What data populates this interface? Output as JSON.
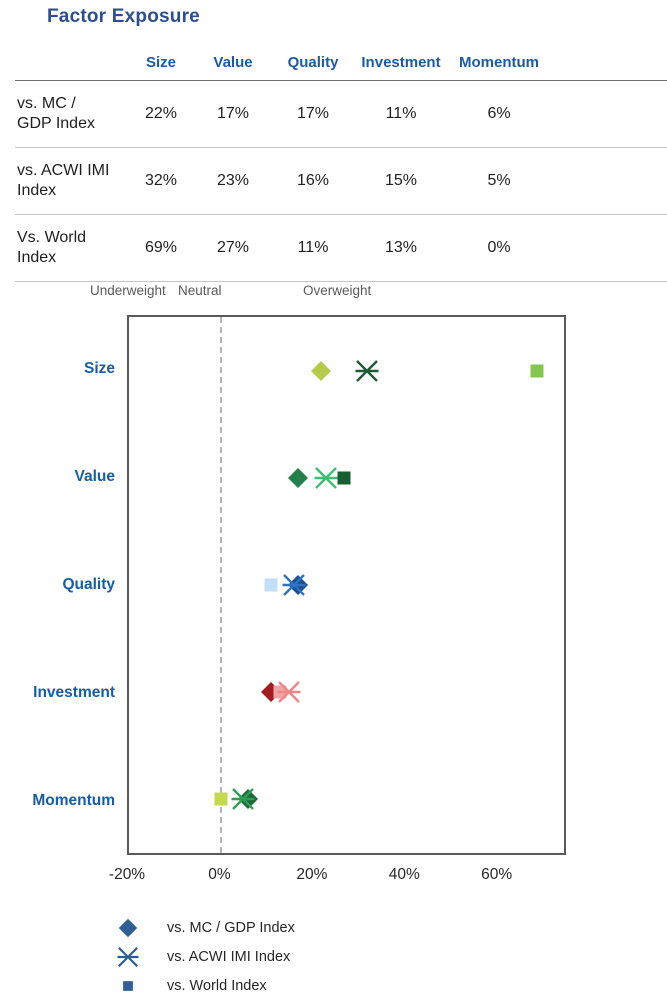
{
  "title": "Factor Exposure",
  "table": {
    "columns": [
      "Size",
      "Value",
      "Quality",
      "Investment",
      "Momentum"
    ],
    "rows": [
      {
        "label": "vs. MC / GDP Index",
        "values": [
          "22%",
          "17%",
          "17%",
          "11%",
          "6%"
        ]
      },
      {
        "label": "vs. ACWI IMI Index",
        "values": [
          "32%",
          "23%",
          "16%",
          "15%",
          "5%"
        ]
      },
      {
        "label": "Vs. World Index",
        "values": [
          "69%",
          "27%",
          "11%",
          "13%",
          "0%"
        ]
      }
    ]
  },
  "chart_data": {
    "type": "scatter",
    "title": "",
    "categories": [
      "Size",
      "Value",
      "Quality",
      "Investment",
      "Momentum"
    ],
    "series": [
      {
        "name": "vs. MC / GDP Index",
        "marker": "diamond",
        "values": [
          22,
          17,
          17,
          11,
          6
        ],
        "colors": [
          "#b5cb4b",
          "#24804a",
          "#1d4f91",
          "#a31c20",
          "#1b6a39"
        ]
      },
      {
        "name": "vs. ACWI IMI Index",
        "marker": "x",
        "values": [
          32,
          23,
          16,
          15,
          5
        ],
        "colors": [
          "#1d5c36",
          "#3cbe73",
          "#2e74c1",
          "#f08486",
          "#2f9e54"
        ]
      },
      {
        "name": "vs. World Index",
        "marker": "square",
        "values": [
          69,
          27,
          11,
          13,
          0
        ],
        "colors": [
          "#85c552",
          "#175f31",
          "#c3dff5",
          "#efa5a5",
          "#c5d94e"
        ]
      }
    ],
    "xlim": [
      -20,
      75
    ],
    "xtick_labels": [
      "-20%",
      "0%",
      "20%",
      "40%",
      "60%"
    ],
    "xtick_values": [
      -20,
      0,
      20,
      40,
      60
    ],
    "zero_line": 0,
    "zone_labels": [
      "Underweight",
      "Neutral",
      "Overweight"
    ],
    "grid": "off",
    "legend_position": "bottom-left",
    "legend_color": "#2d5f94"
  },
  "colors": {
    "title_blue": "#2d4f90",
    "header_blue": "#1a5ba6",
    "category_blue": "#155da8",
    "zone_gray": "#595959",
    "plot_border": "#595959",
    "dashed_line": "#b3b3b3",
    "legend_blue": "#2d5f94"
  }
}
